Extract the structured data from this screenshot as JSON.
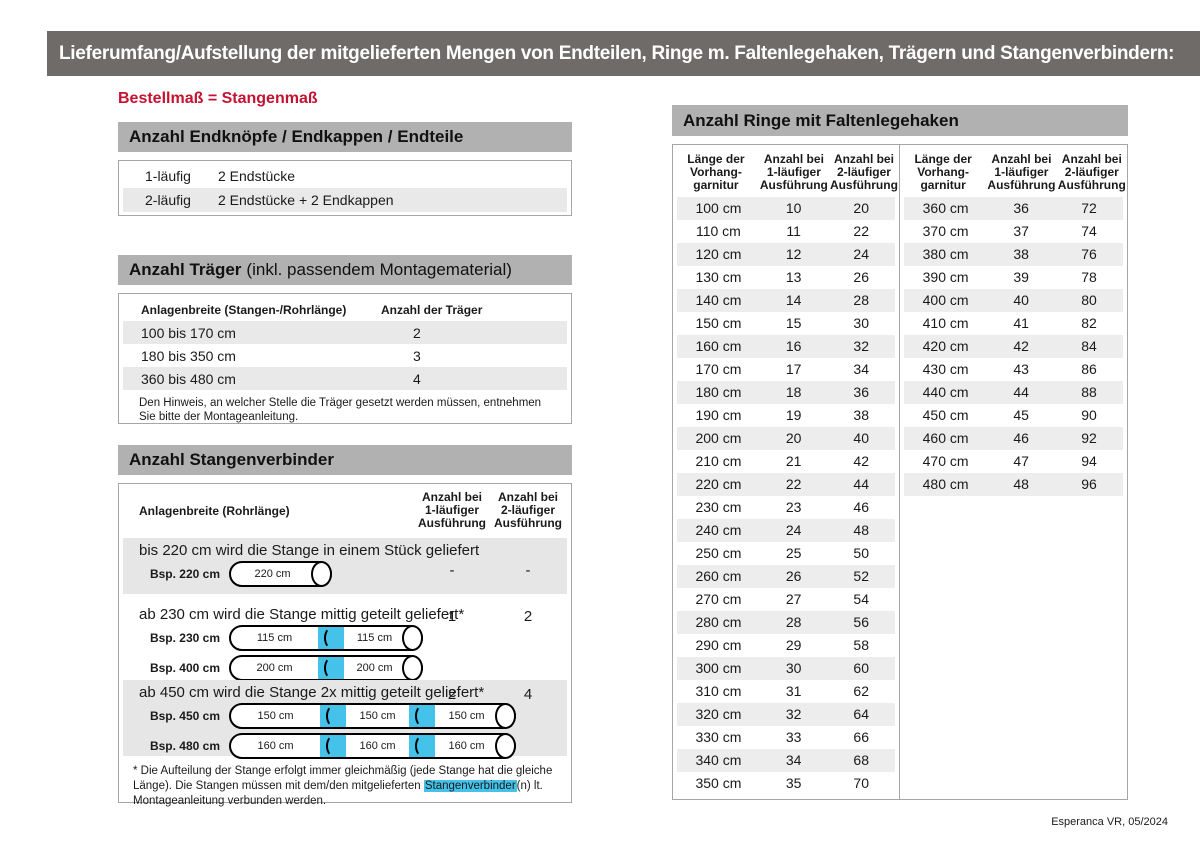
{
  "page": {
    "title_bar": "Lieferumfang/Aufstellung der mitgelieferten Mengen von Endteilen, Ringe m. Faltenlegehaken, Trägern und Stangenverbindern:",
    "subtitle": "Bestellmaß = Stangenmaß",
    "footer": "Esperanca VR, 05/2024"
  },
  "colors": {
    "accent_red": "#c51230",
    "titlebar_gray": "#6e6b68",
    "section_gray": "#b1b1b1",
    "row_shade_gray": "#e9e9e9",
    "connector_blue": "#45c2ea"
  },
  "endteile": {
    "title": "Anzahl Endknöpfe / Endkappen / Endteile",
    "rows": [
      {
        "label": "1-läufig",
        "value": "2 Endstücke"
      },
      {
        "label": "2-läufig",
        "value": "2 Endstücke + 2 Endkappen"
      }
    ]
  },
  "traeger": {
    "title": "Anzahl Träger",
    "title_suffix": "(inkl. passendem Montagematerial)",
    "col1": "Anlagenbreite (Stangen-/Rohrlänge)",
    "col2": "Anzahl der Träger",
    "rows": [
      {
        "range": "100 bis 170 cm",
        "count": "2"
      },
      {
        "range": "180 bis 350 cm",
        "count": "3"
      },
      {
        "range": "360 bis 480 cm",
        "count": "4"
      }
    ],
    "note": "Den Hinweis, an welcher Stelle die Träger gesetzt werden müssen, entnehmen Sie bitte der Montageanleitung."
  },
  "stangenverbinder": {
    "title": "Anzahl Stangenverbinder",
    "col1": "Anlagenbreite (Rohrlänge)",
    "col2": "Anzahl bei\n1-läufiger\nAusführung",
    "col3": "Anzahl bei\n2-läufiger\nAusführung",
    "rows": [
      {
        "text": "bis 220 cm wird die Stange in einem Stück geliefert",
        "v1": "-",
        "v2": "-",
        "examples": [
          {
            "label": "Bsp. 220 cm",
            "segments": [
              "220 cm"
            ]
          }
        ]
      },
      {
        "text": "ab 230 cm wird die Stange mittig geteilt geliefert*",
        "v1": "1",
        "v2": "2",
        "examples": [
          {
            "label": "Bsp. 230 cm",
            "segments": [
              "115 cm",
              "115 cm"
            ]
          },
          {
            "label": "Bsp. 400 cm",
            "segments": [
              "200 cm",
              "200 cm"
            ]
          }
        ]
      },
      {
        "text": "ab 450 cm wird die Stange 2x mittig geteilt geliefert*",
        "v1": "2",
        "v2": "4",
        "examples": [
          {
            "label": "Bsp. 450 cm",
            "segments": [
              "150 cm",
              "150 cm",
              "150 cm"
            ]
          },
          {
            "label": "Bsp. 480 cm",
            "segments": [
              "160 cm",
              "160 cm",
              "160 cm"
            ]
          }
        ]
      }
    ],
    "footnote_pre": "* Die Aufteilung der Stange erfolgt immer gleichmäßig (jede Stange hat die gleiche Länge). Die Stangen müssen mit dem/den mitgelieferten ",
    "footnote_highlight": "Stangenverbinder",
    "footnote_post": "(n) lt. Montageanleitung verbunden werden."
  },
  "ringe": {
    "title": "Anzahl Ringe mit Faltenlegehaken",
    "col_length": "Länge der\nVorhang-\ngarnitur",
    "col_one": "Anzahl bei\n1-läufiger\nAusführung",
    "col_two": "Anzahl bei\n2-läufiger\nAusführung",
    "left_rows": [
      {
        "cm": "100 cm",
        "one": "10",
        "two": "20"
      },
      {
        "cm": "110 cm",
        "one": "11",
        "two": "22"
      },
      {
        "cm": "120 cm",
        "one": "12",
        "two": "24"
      },
      {
        "cm": "130 cm",
        "one": "13",
        "two": "26"
      },
      {
        "cm": "140 cm",
        "one": "14",
        "two": "28"
      },
      {
        "cm": "150 cm",
        "one": "15",
        "two": "30"
      },
      {
        "cm": "160 cm",
        "one": "16",
        "two": "32"
      },
      {
        "cm": "170 cm",
        "one": "17",
        "two": "34"
      },
      {
        "cm": "180 cm",
        "one": "18",
        "two": "36"
      },
      {
        "cm": "190 cm",
        "one": "19",
        "two": "38"
      },
      {
        "cm": "200 cm",
        "one": "20",
        "two": "40"
      },
      {
        "cm": "210 cm",
        "one": "21",
        "two": "42"
      },
      {
        "cm": "220 cm",
        "one": "22",
        "two": "44"
      },
      {
        "cm": "230 cm",
        "one": "23",
        "two": "46"
      },
      {
        "cm": "240 cm",
        "one": "24",
        "two": "48"
      },
      {
        "cm": "250 cm",
        "one": "25",
        "two": "50"
      },
      {
        "cm": "260 cm",
        "one": "26",
        "two": "52"
      },
      {
        "cm": "270 cm",
        "one": "27",
        "two": "54"
      },
      {
        "cm": "280 cm",
        "one": "28",
        "two": "56"
      },
      {
        "cm": "290 cm",
        "one": "29",
        "two": "58"
      },
      {
        "cm": "300 cm",
        "one": "30",
        "two": "60"
      },
      {
        "cm": "310 cm",
        "one": "31",
        "two": "62"
      },
      {
        "cm": "320 cm",
        "one": "32",
        "two": "64"
      },
      {
        "cm": "330 cm",
        "one": "33",
        "two": "66"
      },
      {
        "cm": "340 cm",
        "one": "34",
        "two": "68"
      },
      {
        "cm": "350 cm",
        "one": "35",
        "two": "70"
      }
    ],
    "right_rows": [
      {
        "cm": "360 cm",
        "one": "36",
        "two": "72"
      },
      {
        "cm": "370 cm",
        "one": "37",
        "two": "74"
      },
      {
        "cm": "380 cm",
        "one": "38",
        "two": "76"
      },
      {
        "cm": "390 cm",
        "one": "39",
        "two": "78"
      },
      {
        "cm": "400 cm",
        "one": "40",
        "two": "80"
      },
      {
        "cm": "410 cm",
        "one": "41",
        "two": "82"
      },
      {
        "cm": "420 cm",
        "one": "42",
        "two": "84"
      },
      {
        "cm": "430 cm",
        "one": "43",
        "two": "86"
      },
      {
        "cm": "440 cm",
        "one": "44",
        "two": "88"
      },
      {
        "cm": "450 cm",
        "one": "45",
        "two": "90"
      },
      {
        "cm": "460 cm",
        "one": "46",
        "two": "92"
      },
      {
        "cm": "470 cm",
        "one": "47",
        "two": "94"
      },
      {
        "cm": "480 cm",
        "one": "48",
        "two": "96"
      }
    ]
  }
}
